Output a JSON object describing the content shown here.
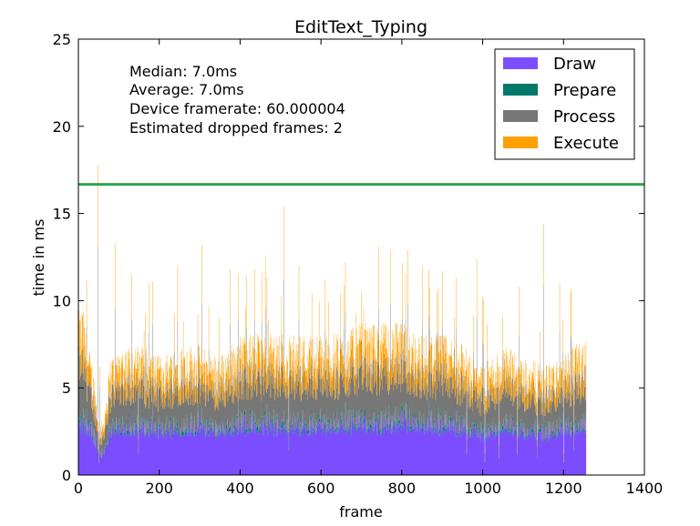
{
  "chart_data": {
    "type": "bar",
    "stacked": true,
    "title": "EditText_Typing",
    "xlabel": "frame",
    "ylabel": "time in ms",
    "xlim": [
      0,
      1400
    ],
    "ylim": [
      0,
      25
    ],
    "xticks": [
      0,
      200,
      400,
      600,
      800,
      1000,
      1200,
      1400
    ],
    "yticks": [
      0,
      5,
      10,
      15,
      20,
      25
    ],
    "frame_count": 1256,
    "legend_position": "top-right",
    "threshold_line": {
      "y": 16.67,
      "color": "#2ca552"
    },
    "annotations": [
      "Median: 7.0ms",
      "Average: 7.0ms",
      "Device framerate: 60.000004",
      "Estimated dropped frames: 2"
    ],
    "series": [
      {
        "name": "Draw",
        "color": "#7c4dff",
        "typical_ms": 2.5
      },
      {
        "name": "Prepare",
        "color": "#00796b",
        "typical_ms": 0.2
      },
      {
        "name": "Process",
        "color": "#777777",
        "typical_ms": 1.8
      },
      {
        "name": "Execute",
        "color": "#ffa000",
        "typical_ms": 1.0
      }
    ],
    "total_frame_time_profile": {
      "frames": [
        0,
        10,
        20,
        30,
        40,
        45,
        50,
        60,
        80,
        100,
        150,
        200,
        250,
        300,
        350,
        400,
        450,
        500,
        550,
        600,
        650,
        700,
        750,
        800,
        850,
        900,
        950,
        1000,
        1050,
        1100,
        1150,
        1200,
        1256
      ],
      "typical_total_ms": [
        7.5,
        7.8,
        6.5,
        5.5,
        4.5,
        3.5,
        2.5,
        2.5,
        5.5,
        6.0,
        6.0,
        5.5,
        6.0,
        6.0,
        5.5,
        6.5,
        6.5,
        6.5,
        6.5,
        6.5,
        6.5,
        7.0,
        7.0,
        7.0,
        6.5,
        6.5,
        6.0,
        5.0,
        6.0,
        5.5,
        5.0,
        5.5,
        6.5
      ]
    },
    "spikes": [
      {
        "frame": 48,
        "total_ms": 17.8
      },
      {
        "frame": 20,
        "total_ms": 11.2
      },
      {
        "frame": 90,
        "total_ms": 13.3
      },
      {
        "frame": 132,
        "total_ms": 11.5
      },
      {
        "frame": 175,
        "total_ms": 11.0
      },
      {
        "frame": 245,
        "total_ms": 12.0
      },
      {
        "frame": 305,
        "total_ms": 13.2
      },
      {
        "frame": 375,
        "total_ms": 11.8
      },
      {
        "frame": 435,
        "total_ms": 11.8
      },
      {
        "frame": 462,
        "total_ms": 12.6
      },
      {
        "frame": 508,
        "total_ms": 15.4
      },
      {
        "frame": 545,
        "total_ms": 12.0
      },
      {
        "frame": 610,
        "total_ms": 11.2
      },
      {
        "frame": 660,
        "total_ms": 12.2
      },
      {
        "frame": 700,
        "total_ms": 10.5
      },
      {
        "frame": 815,
        "total_ms": 12.9
      },
      {
        "frame": 850,
        "total_ms": 12.0
      },
      {
        "frame": 900,
        "total_ms": 11.7
      },
      {
        "frame": 985,
        "total_ms": 12.4
      },
      {
        "frame": 1090,
        "total_ms": 10.8
      },
      {
        "frame": 1150,
        "total_ms": 14.4
      },
      {
        "frame": 1190,
        "total_ms": 11.0
      }
    ],
    "dips": [
      {
        "frame": 50,
        "total_ms": 1.5
      },
      {
        "frame": 148,
        "total_ms": 2.5
      },
      {
        "frame": 520,
        "total_ms": 3.0
      },
      {
        "frame": 960,
        "total_ms": 2.5
      },
      {
        "frame": 1005,
        "total_ms": 1.5
      },
      {
        "frame": 1040,
        "total_ms": 2.0
      },
      {
        "frame": 1085,
        "total_ms": 2.5
      },
      {
        "frame": 1135,
        "total_ms": 2.0
      },
      {
        "frame": 1200,
        "total_ms": 1.5
      },
      {
        "frame": 1225,
        "total_ms": 3.0
      }
    ]
  }
}
